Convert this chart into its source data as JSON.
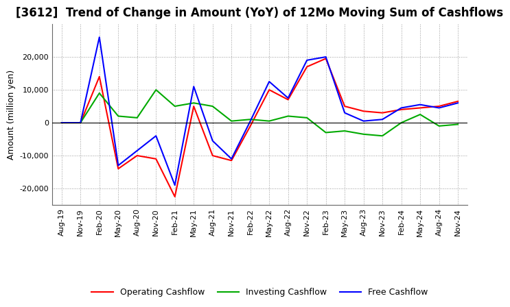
{
  "title": "[3612]  Trend of Change in Amount (YoY) of 12Mo Moving Sum of Cashflows",
  "ylabel": "Amount (million yen)",
  "x_labels": [
    "Aug-19",
    "Nov-19",
    "Feb-20",
    "May-20",
    "Aug-20",
    "Nov-20",
    "Feb-21",
    "May-21",
    "Aug-21",
    "Nov-21",
    "Feb-22",
    "May-22",
    "Aug-22",
    "Nov-22",
    "Feb-23",
    "May-23",
    "Aug-23",
    "Nov-23",
    "Feb-24",
    "May-24",
    "Aug-24",
    "Nov-24"
  ],
  "operating": [
    0,
    0,
    14000,
    -14000,
    -10000,
    -11000,
    -22500,
    5000,
    -10000,
    -11500,
    -1000,
    10000,
    7000,
    17000,
    19500,
    5000,
    3500,
    3000,
    4000,
    4500,
    5000,
    6500
  ],
  "investing": [
    0,
    0,
    9000,
    2000,
    1500,
    10000,
    5000,
    6000,
    5000,
    500,
    1000,
    500,
    2000,
    1500,
    -3000,
    -2500,
    -3500,
    -4000,
    0,
    2500,
    -1000,
    -500
  ],
  "free": [
    0,
    0,
    26000,
    -13000,
    -8500,
    -4000,
    -19000,
    11000,
    -5500,
    -11000,
    500,
    12500,
    7500,
    19000,
    20000,
    3000,
    500,
    1000,
    4500,
    5500,
    4500,
    6000
  ],
  "operating_color": "#ff0000",
  "investing_color": "#00aa00",
  "free_color": "#0000ff",
  "ylim": [
    -25000,
    30000
  ],
  "yticks": [
    -20000,
    -10000,
    0,
    10000,
    20000
  ],
  "background_color": "#ffffff",
  "grid_color": "#999999",
  "title_fontsize": 12,
  "axis_fontsize": 8,
  "legend_labels": [
    "Operating Cashflow",
    "Investing Cashflow",
    "Free Cashflow"
  ]
}
